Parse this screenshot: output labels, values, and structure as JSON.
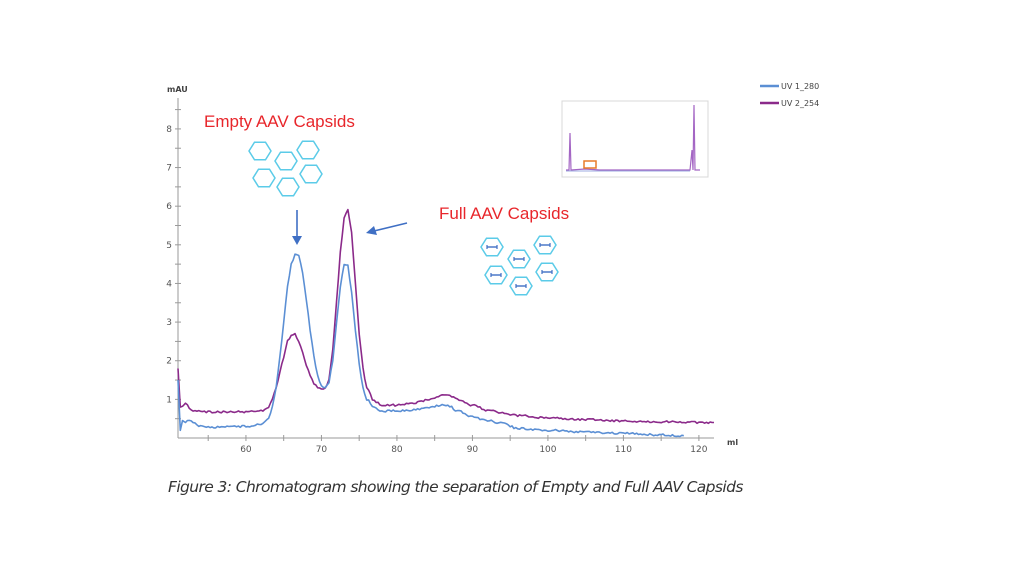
{
  "chart_data": {
    "type": "line",
    "title": "",
    "xlabel": "ml",
    "ylabel": "mAU",
    "xlim": [
      51,
      122
    ],
    "ylim": [
      0,
      8.8
    ],
    "x_ticks": [
      60,
      70,
      80,
      90,
      100,
      110,
      120
    ],
    "x_minor_step": 5,
    "y_ticks": [
      1,
      2,
      3,
      4,
      5,
      6,
      7,
      8
    ],
    "y_minor_step": 0.5,
    "grid": false,
    "legend_position": "top-right",
    "series": [
      {
        "name": "UV 1_280",
        "color": "#5b8fd4",
        "x": [
          51,
          51.3,
          51.6,
          52,
          52.5,
          53,
          54,
          56,
          58,
          60,
          62,
          63,
          63.5,
          64,
          64.5,
          65,
          65.5,
          66,
          66.5,
          67,
          67.5,
          68,
          68.5,
          69,
          69.5,
          70,
          70.5,
          71,
          71.5,
          72,
          72.5,
          73,
          73.5,
          74,
          74.5,
          75,
          75.5,
          76,
          77,
          78,
          80,
          82,
          84,
          86,
          87,
          88,
          90,
          92,
          94,
          96,
          100,
          105,
          110,
          115,
          118
        ],
        "y": [
          1.5,
          0.2,
          0.45,
          0.4,
          0.48,
          0.38,
          0.3,
          0.28,
          0.3,
          0.3,
          0.35,
          0.5,
          0.8,
          1.3,
          2.1,
          3.0,
          3.9,
          4.5,
          4.75,
          4.7,
          4.3,
          3.6,
          2.8,
          2.1,
          1.6,
          1.35,
          1.3,
          1.45,
          2.0,
          3.0,
          3.9,
          4.5,
          4.45,
          3.8,
          2.8,
          1.9,
          1.3,
          1.0,
          0.8,
          0.7,
          0.7,
          0.72,
          0.78,
          0.85,
          0.82,
          0.7,
          0.55,
          0.45,
          0.38,
          0.25,
          0.2,
          0.15,
          0.12,
          0.08,
          0.06
        ]
      },
      {
        "name": "UV 2_254",
        "color": "#8b2a8a",
        "x": [
          51,
          51.3,
          51.6,
          52,
          52.5,
          53,
          54,
          56,
          58,
          60,
          62,
          63,
          63.5,
          64,
          64.5,
          65,
          65.5,
          66,
          66.5,
          67,
          67.5,
          68,
          68.5,
          69,
          69.5,
          70,
          70.5,
          71,
          71.5,
          72,
          72.5,
          73,
          73.5,
          74,
          74.5,
          75,
          75.5,
          76,
          77,
          78,
          80,
          82,
          84,
          86,
          87,
          88,
          90,
          92,
          94,
          96,
          100,
          105,
          110,
          115,
          122
        ],
        "y": [
          1.8,
          0.8,
          0.82,
          0.9,
          0.78,
          0.72,
          0.68,
          0.67,
          0.68,
          0.68,
          0.7,
          0.8,
          1.0,
          1.3,
          1.7,
          2.1,
          2.5,
          2.68,
          2.7,
          2.5,
          2.2,
          1.9,
          1.6,
          1.4,
          1.3,
          1.25,
          1.28,
          1.5,
          2.3,
          3.5,
          4.8,
          5.7,
          5.9,
          5.3,
          4.0,
          2.7,
          1.8,
          1.3,
          0.95,
          0.85,
          0.85,
          0.9,
          0.98,
          1.1,
          1.1,
          1.0,
          0.85,
          0.72,
          0.65,
          0.58,
          0.52,
          0.48,
          0.44,
          0.42,
          0.4
        ]
      }
    ],
    "annotations": [
      {
        "text": "Empty AAV Capsids",
        "color": "#e8262b",
        "points_to_x": 67.3
      },
      {
        "text": "Full AAV Capsids",
        "color": "#e8262b",
        "points_to_x": 73.5
      }
    ],
    "caption": "Figure 3: Chromatogram showing the separation of Empty and Full AAV Capsids"
  },
  "colors": {
    "axis": "#9a9a9a",
    "hexagon": "#5bcbe8",
    "arrow": "#3f6fc4",
    "thumbnail_highlight": "#e87b2a"
  }
}
